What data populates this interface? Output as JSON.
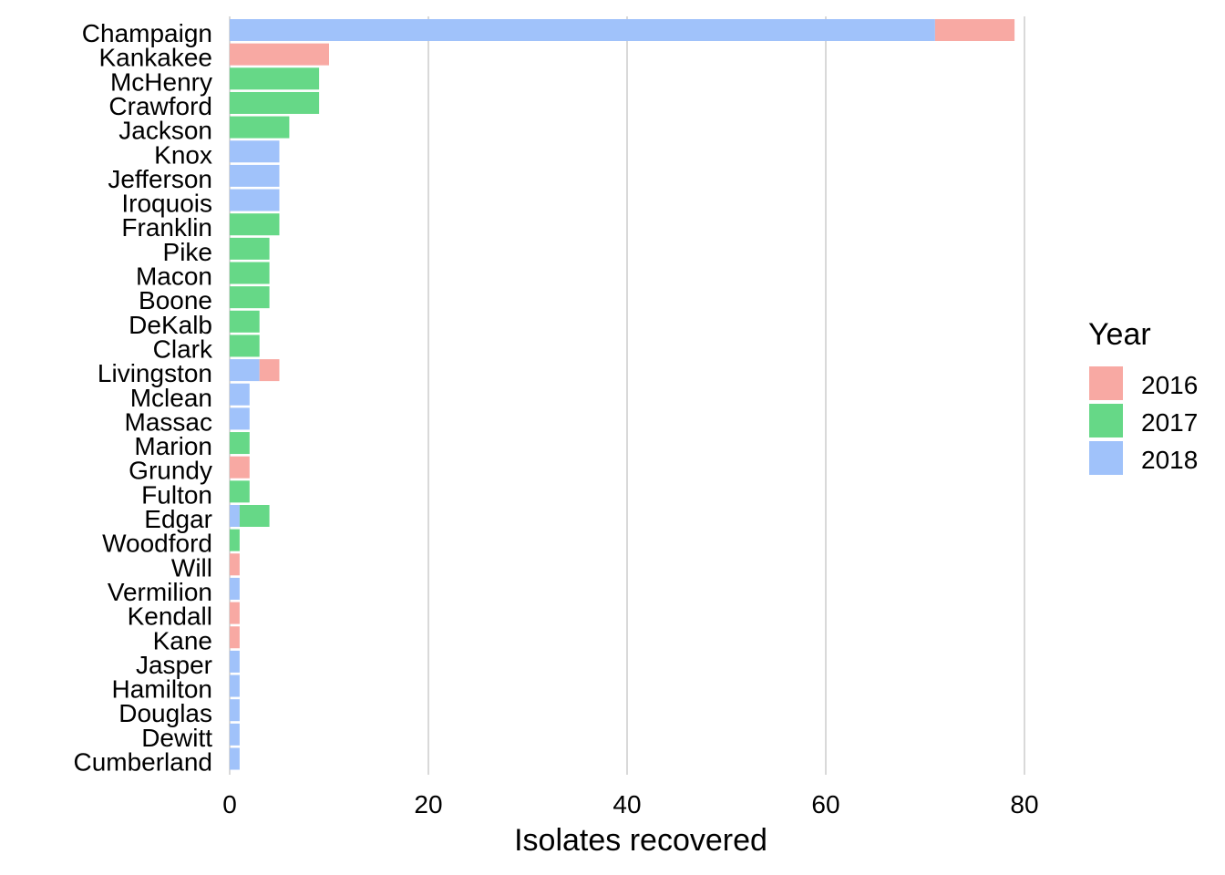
{
  "chart_data": {
    "type": "bar",
    "orientation": "horizontal",
    "stacked": true,
    "title": "",
    "xlabel": "Isolates recovered",
    "ylabel": "",
    "xlim": [
      0,
      80
    ],
    "x_ticks": [
      0,
      20,
      40,
      60,
      80
    ],
    "grid": "vertical-major",
    "legend": {
      "title": "Year",
      "position": "right",
      "entries": [
        {
          "name": "2016",
          "color": "#F8A9A3"
        },
        {
          "name": "2017",
          "color": "#66D887"
        },
        {
          "name": "2018",
          "color": "#A0C2FA"
        }
      ]
    },
    "stack_order": [
      "2018",
      "2017",
      "2016"
    ],
    "categories": [
      "Champaign",
      "Kankakee",
      "McHenry",
      "Crawford",
      "Jackson",
      "Knox",
      "Jefferson",
      "Iroquois",
      "Franklin",
      "Pike",
      "Macon",
      "Boone",
      "DeKalb",
      "Clark",
      "Livingston",
      "Mclean",
      "Massac",
      "Marion",
      "Grundy",
      "Fulton",
      "Edgar",
      "Woodford",
      "Will",
      "Vermilion",
      "Kendall",
      "Kane",
      "Jasper",
      "Hamilton",
      "Douglas",
      "Dewitt",
      "Cumberland"
    ],
    "series": [
      {
        "name": "2016",
        "values": [
          8,
          10,
          0,
          0,
          0,
          0,
          0,
          0,
          0,
          0,
          0,
          0,
          0,
          0,
          2,
          0,
          0,
          0,
          2,
          0,
          0,
          0,
          1,
          0,
          1,
          1,
          0,
          0,
          0,
          0,
          0
        ]
      },
      {
        "name": "2017",
        "values": [
          0,
          0,
          9,
          9,
          6,
          0,
          0,
          0,
          5,
          4,
          4,
          4,
          3,
          3,
          0,
          0,
          0,
          2,
          0,
          2,
          3,
          1,
          0,
          0,
          0,
          0,
          0,
          0,
          0,
          0,
          0
        ]
      },
      {
        "name": "2018",
        "values": [
          71,
          0,
          0,
          0,
          0,
          5,
          5,
          5,
          0,
          0,
          0,
          0,
          0,
          0,
          3,
          2,
          2,
          0,
          0,
          0,
          1,
          0,
          0,
          1,
          0,
          0,
          1,
          1,
          1,
          1,
          1
        ]
      }
    ]
  }
}
